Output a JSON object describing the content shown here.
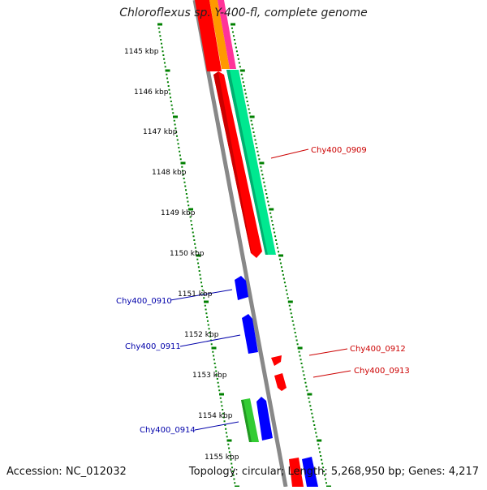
{
  "title": "Chloroflexus sp. Y-400-fl, complete genome",
  "footer": {
    "accession": "Accession: NC_012032",
    "summary": "Topology: circular; Length: 5,268,950 bp; Genes: 4,217"
  },
  "ticks": [
    "1145 kbp",
    "1146 kbp",
    "1147 kbp",
    "1148 kbp",
    "1149 kbp",
    "1150 kbp",
    "1151 kbp",
    "1152 kbp",
    "1153 kbp",
    "1154 kbp",
    "1155 kbp"
  ],
  "gene_labels": {
    "g0909": "Chy400_0909",
    "g0910": "Chy400_0910",
    "g0911": "Chy400_0911",
    "g0912": "Chy400_0912",
    "g0913": "Chy400_0913",
    "g0914": "Chy400_0914"
  },
  "colors": {
    "backbone": "#888888",
    "tick_green": "#008000",
    "forward_red": "#ff0000",
    "forward_label": "#cc0000",
    "reverse_blue": "#0000ff",
    "reverse_label": "#0000aa",
    "feature_teal": "#00e890",
    "feature_green": "#33cc33",
    "feature_orange": "#ff9900",
    "feature_pink": "#ff3399"
  }
}
